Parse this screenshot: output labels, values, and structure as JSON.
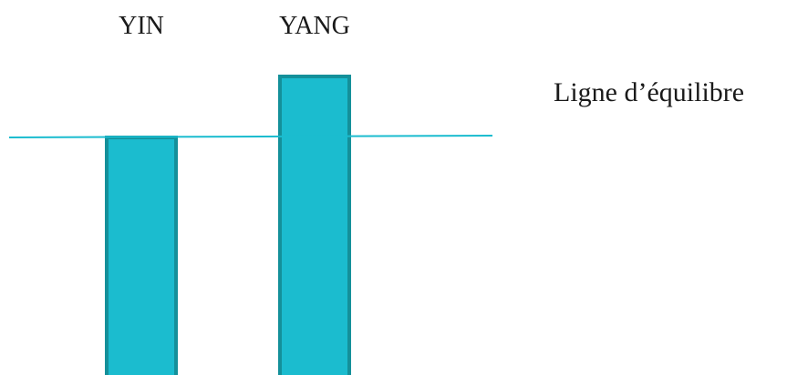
{
  "chart_data": {
    "type": "bar",
    "title": "",
    "xlabel": "",
    "ylabel": "",
    "categories": [
      "YIN",
      "YANG"
    ],
    "values": [
      0,
      0.25
    ],
    "reference_line": {
      "label": "Ligne d’équilibre",
      "value": 0
    },
    "ylim": [
      -1.0,
      0.25
    ],
    "grid": false,
    "legend": "none",
    "colors": {
      "bar_fill": "#1bbccf",
      "bar_stroke": "#14909a",
      "line": "#1bbccf"
    }
  }
}
